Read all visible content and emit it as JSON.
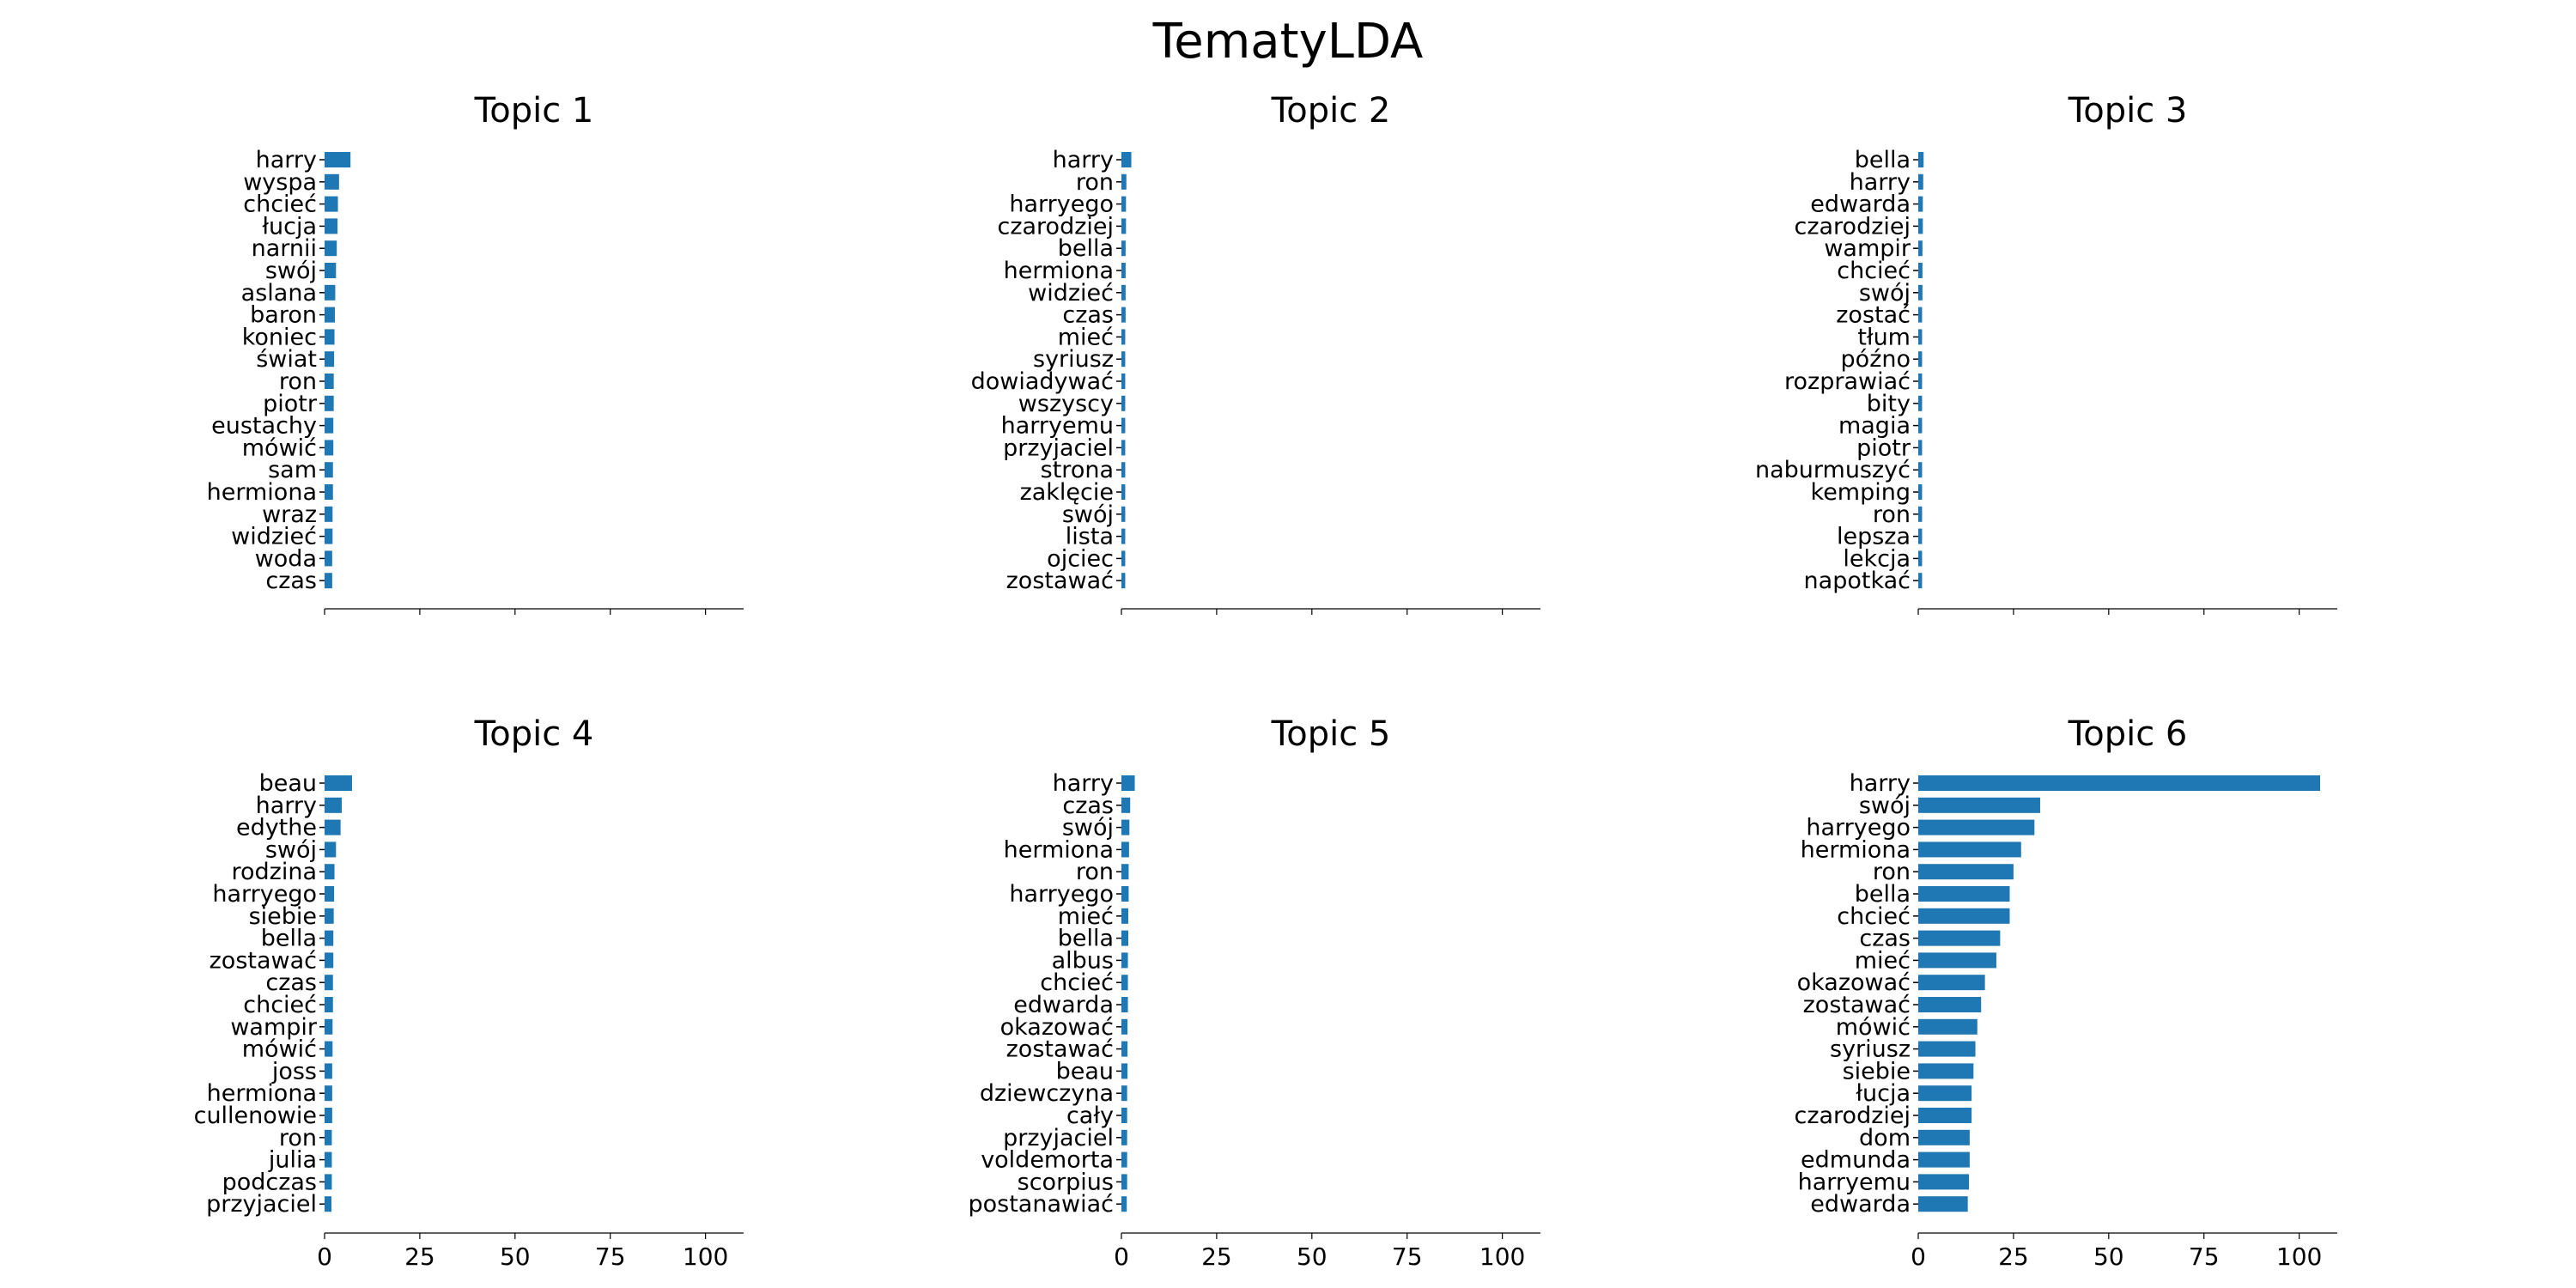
{
  "figure": {
    "title": "TematyLDA"
  },
  "chart_data": [
    {
      "type": "bar",
      "orientation": "horizontal",
      "title": "Topic 1",
      "xlim": [
        0,
        110
      ],
      "xticks": [
        0,
        25,
        50,
        75,
        100
      ],
      "show_xtick_labels": false,
      "bar_color": "#1f77b4",
      "categories": [
        "harry",
        "wyspa",
        "chcieć",
        "łucja",
        "narnii",
        "swój",
        "aslana",
        "baron",
        "koniec",
        "świat",
        "ron",
        "piotr",
        "eustachy",
        "mówić",
        "sam",
        "hermiona",
        "wraz",
        "widzieć",
        "woda",
        "czas"
      ],
      "values": [
        6.8,
        3.8,
        3.5,
        3.4,
        3.2,
        3.0,
        2.8,
        2.7,
        2.6,
        2.5,
        2.4,
        2.4,
        2.3,
        2.3,
        2.2,
        2.2,
        2.1,
        2.1,
        2.0,
        2.0
      ]
    },
    {
      "type": "bar",
      "orientation": "horizontal",
      "title": "Topic 2",
      "xlim": [
        0,
        110
      ],
      "xticks": [
        0,
        25,
        50,
        75,
        100
      ],
      "show_xtick_labels": false,
      "bar_color": "#1f77b4",
      "categories": [
        "harry",
        "ron",
        "harryego",
        "czarodziej",
        "bella",
        "hermiona",
        "widzieć",
        "czas",
        "mieć",
        "syriusz",
        "dowiadywać",
        "wszyscy",
        "harryemu",
        "przyjaciel",
        "strona",
        "zaklęcie",
        "swój",
        "lista",
        "ojciec",
        "zostawać"
      ],
      "values": [
        2.6,
        1.3,
        1.2,
        1.2,
        1.1,
        1.1,
        1.1,
        1.1,
        1.0,
        1.0,
        1.0,
        1.0,
        1.0,
        1.0,
        1.0,
        1.0,
        1.0,
        1.0,
        1.0,
        1.0
      ]
    },
    {
      "type": "bar",
      "orientation": "horizontal",
      "title": "Topic 3",
      "xlim": [
        0,
        110
      ],
      "xticks": [
        0,
        25,
        50,
        75,
        100
      ],
      "show_xtick_labels": false,
      "bar_color": "#1f77b4",
      "categories": [
        "bella",
        "harry",
        "edwarda",
        "czarodziej",
        "wampir",
        "chcieć",
        "swój",
        "zostać",
        "tłum",
        "późno",
        "rozprawiać",
        "bity",
        "magia",
        "piotr",
        "naburmuszyć",
        "kemping",
        "ron",
        "lepsza",
        "lekcja",
        "napotkać"
      ],
      "values": [
        1.4,
        1.3,
        1.2,
        1.2,
        1.1,
        1.1,
        1.1,
        1.0,
        1.0,
        1.0,
        1.0,
        1.0,
        1.0,
        1.0,
        1.0,
        1.0,
        1.0,
        1.0,
        1.0,
        1.0
      ]
    },
    {
      "type": "bar",
      "orientation": "horizontal",
      "title": "Topic 4",
      "xlim": [
        0,
        110
      ],
      "xticks": [
        0,
        25,
        50,
        75,
        100
      ],
      "show_xtick_labels": true,
      "bar_color": "#1f77b4",
      "categories": [
        "beau",
        "harry",
        "edythe",
        "swój",
        "rodzina",
        "harryego",
        "siebie",
        "bella",
        "zostawać",
        "czas",
        "chcieć",
        "wampir",
        "mówić",
        "joss",
        "hermiona",
        "cullenowie",
        "ron",
        "julia",
        "podczas",
        "przyjaciel"
      ],
      "values": [
        7.2,
        4.5,
        4.2,
        3.0,
        2.6,
        2.5,
        2.4,
        2.3,
        2.3,
        2.2,
        2.2,
        2.1,
        2.1,
        2.0,
        2.0,
        2.0,
        1.9,
        1.9,
        1.9,
        1.8
      ]
    },
    {
      "type": "bar",
      "orientation": "horizontal",
      "title": "Topic 5",
      "xlim": [
        0,
        110
      ],
      "xticks": [
        0,
        25,
        50,
        75,
        100
      ],
      "show_xtick_labels": true,
      "bar_color": "#1f77b4",
      "categories": [
        "harry",
        "czas",
        "swój",
        "hermiona",
        "ron",
        "harryego",
        "mieć",
        "bella",
        "albus",
        "chcieć",
        "edwarda",
        "okazować",
        "zostawać",
        "beau",
        "dziewczyna",
        "cały",
        "przyjaciel",
        "voldemorta",
        "scorpius",
        "postanawiać"
      ],
      "values": [
        3.5,
        2.3,
        2.1,
        2.0,
        1.9,
        1.9,
        1.8,
        1.8,
        1.7,
        1.7,
        1.7,
        1.6,
        1.6,
        1.6,
        1.5,
        1.5,
        1.5,
        1.5,
        1.5,
        1.4
      ]
    },
    {
      "type": "bar",
      "orientation": "horizontal",
      "title": "Topic 6",
      "xlim": [
        0,
        110
      ],
      "xticks": [
        0,
        25,
        50,
        75,
        100
      ],
      "show_xtick_labels": true,
      "bar_color": "#1f77b4",
      "categories": [
        "harry",
        "swój",
        "harryego",
        "hermiona",
        "ron",
        "bella",
        "chcieć",
        "czas",
        "mieć",
        "okazować",
        "zostawać",
        "mówić",
        "syriusz",
        "siebie",
        "łucja",
        "czarodziej",
        "dom",
        "edmunda",
        "harryemu",
        "edwarda"
      ],
      "values": [
        105.5,
        32,
        30.5,
        27,
        25,
        24,
        24,
        21.5,
        20.5,
        17.5,
        16.5,
        15.5,
        15,
        14.5,
        14,
        14,
        13.5,
        13.5,
        13.3,
        13
      ]
    }
  ]
}
